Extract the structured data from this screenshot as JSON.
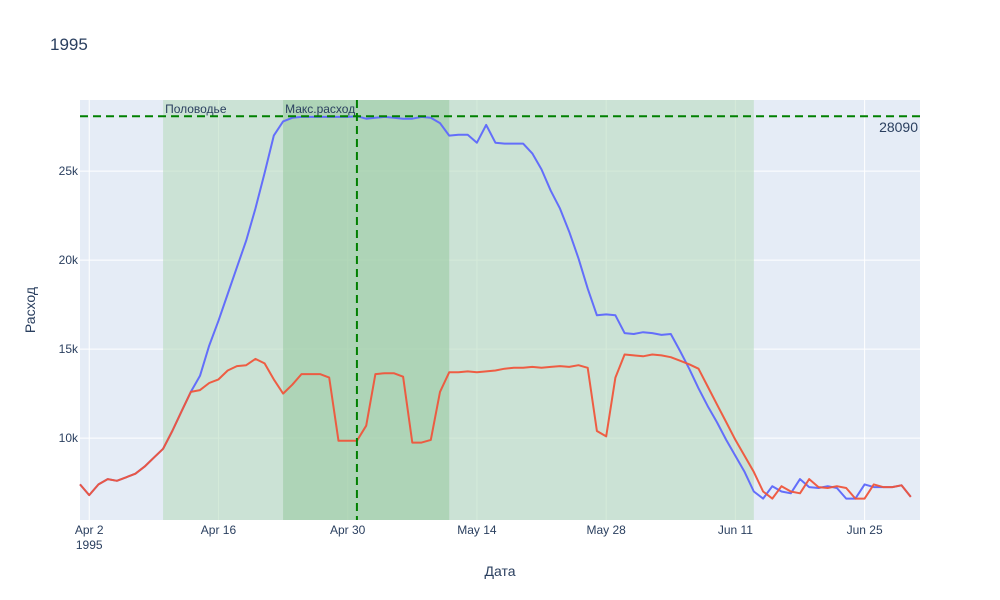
{
  "chart_data": {
    "type": "line",
    "title": "1995",
    "xlabel": "Дата",
    "ylabel": "Расход",
    "xlim": [
      "1995-04-01",
      "1995-07-01"
    ],
    "ylim": [
      5400,
      29000
    ],
    "x_ticks": [
      {
        "date": "1995-04-02",
        "label": "Apr 2",
        "sublabel": "1995"
      },
      {
        "date": "1995-04-16",
        "label": "Apr 16"
      },
      {
        "date": "1995-04-30",
        "label": "Apr 30"
      },
      {
        "date": "1995-05-14",
        "label": "May 14"
      },
      {
        "date": "1995-05-28",
        "label": "May 28"
      },
      {
        "date": "1995-06-11",
        "label": "Jun 11"
      },
      {
        "date": "1995-06-25",
        "label": "Jun 25"
      }
    ],
    "y_ticks": [
      {
        "value": 10000,
        "label": "10k"
      },
      {
        "value": 15000,
        "label": "15k"
      },
      {
        "value": 20000,
        "label": "20k"
      },
      {
        "value": 25000,
        "label": "25k"
      }
    ],
    "grid": true,
    "legend": false,
    "regions": [
      {
        "label": "Половодье",
        "start": "1995-04-10",
        "end": "1995-06-13",
        "color": "#b9dcbf"
      },
      {
        "label": "Макс.расход",
        "start": "1995-04-23",
        "end": "1995-05-11",
        "color": "#9bcba4"
      }
    ],
    "vline": {
      "date": "1995-05-01",
      "color": "#008000"
    },
    "hline": {
      "value": 28090,
      "label": "28090",
      "color": "#008000"
    },
    "colors": {
      "plot_bg": "#e5ecf6",
      "grid": "#ffffff",
      "text": "#2a3f5f"
    },
    "series": [
      {
        "color": "#636efa",
        "points": [
          [
            "1995-04-01",
            7400
          ],
          [
            "1995-04-02",
            6800
          ],
          [
            "1995-04-03",
            7400
          ],
          [
            "1995-04-04",
            7700
          ],
          [
            "1995-04-05",
            7600
          ],
          [
            "1995-04-06",
            7800
          ],
          [
            "1995-04-07",
            8000
          ],
          [
            "1995-04-08",
            8400
          ],
          [
            "1995-04-09",
            8900
          ],
          [
            "1995-04-10",
            9400
          ],
          [
            "1995-04-11",
            10400
          ],
          [
            "1995-04-12",
            11500
          ],
          [
            "1995-04-13",
            12600
          ],
          [
            "1995-04-14",
            13500
          ],
          [
            "1995-04-15",
            15200
          ],
          [
            "1995-04-16",
            16600
          ],
          [
            "1995-04-17",
            18100
          ],
          [
            "1995-04-18",
            19600
          ],
          [
            "1995-04-19",
            21100
          ],
          [
            "1995-04-20",
            22900
          ],
          [
            "1995-04-21",
            24900
          ],
          [
            "1995-04-22",
            27000
          ],
          [
            "1995-04-23",
            27800
          ],
          [
            "1995-04-24",
            28000
          ],
          [
            "1995-04-25",
            28050
          ],
          [
            "1995-04-26",
            28050
          ],
          [
            "1995-04-27",
            28050
          ],
          [
            "1995-04-28",
            28050
          ],
          [
            "1995-04-29",
            28050
          ],
          [
            "1995-04-30",
            28050
          ],
          [
            "1995-05-01",
            28090
          ],
          [
            "1995-05-02",
            27950
          ],
          [
            "1995-05-03",
            28000
          ],
          [
            "1995-05-04",
            28050
          ],
          [
            "1995-05-05",
            28000
          ],
          [
            "1995-05-06",
            27950
          ],
          [
            "1995-05-07",
            27950
          ],
          [
            "1995-05-08",
            28050
          ],
          [
            "1995-05-09",
            28000
          ],
          [
            "1995-05-10",
            27700
          ],
          [
            "1995-05-11",
            27000
          ],
          [
            "1995-05-12",
            27050
          ],
          [
            "1995-05-13",
            27050
          ],
          [
            "1995-05-14",
            26600
          ],
          [
            "1995-05-15",
            27600
          ],
          [
            "1995-05-16",
            26600
          ],
          [
            "1995-05-17",
            26550
          ],
          [
            "1995-05-18",
            26550
          ],
          [
            "1995-05-19",
            26550
          ],
          [
            "1995-05-20",
            26000
          ],
          [
            "1995-05-21",
            25100
          ],
          [
            "1995-05-22",
            23900
          ],
          [
            "1995-05-23",
            22900
          ],
          [
            "1995-05-24",
            21600
          ],
          [
            "1995-05-25",
            20100
          ],
          [
            "1995-05-26",
            18400
          ],
          [
            "1995-05-27",
            16900
          ],
          [
            "1995-05-28",
            16950
          ],
          [
            "1995-05-29",
            16900
          ],
          [
            "1995-05-30",
            15900
          ],
          [
            "1995-05-31",
            15850
          ],
          [
            "1995-06-01",
            15950
          ],
          [
            "1995-06-02",
            15900
          ],
          [
            "1995-06-03",
            15800
          ],
          [
            "1995-06-04",
            15850
          ],
          [
            "1995-06-05",
            14900
          ],
          [
            "1995-06-06",
            13900
          ],
          [
            "1995-06-07",
            12800
          ],
          [
            "1995-06-08",
            11800
          ],
          [
            "1995-06-09",
            10900
          ],
          [
            "1995-06-10",
            9900
          ],
          [
            "1995-06-11",
            9000
          ],
          [
            "1995-06-12",
            8100
          ],
          [
            "1995-06-13",
            7000
          ],
          [
            "1995-06-14",
            6600
          ],
          [
            "1995-06-15",
            7300
          ],
          [
            "1995-06-16",
            7000
          ],
          [
            "1995-06-17",
            6900
          ],
          [
            "1995-06-18",
            7700
          ],
          [
            "1995-06-19",
            7250
          ],
          [
            "1995-06-20",
            7200
          ],
          [
            "1995-06-21",
            7300
          ],
          [
            "1995-06-22",
            7200
          ],
          [
            "1995-06-23",
            6600
          ],
          [
            "1995-06-24",
            6600
          ],
          [
            "1995-06-25",
            7400
          ],
          [
            "1995-06-26",
            7250
          ],
          [
            "1995-06-27",
            7250
          ],
          [
            "1995-06-28",
            7250
          ],
          [
            "1995-06-29",
            7350
          ],
          [
            "1995-06-30",
            6700
          ]
        ]
      },
      {
        "color": "#ef553b",
        "points": [
          [
            "1995-04-01",
            7400
          ],
          [
            "1995-04-02",
            6800
          ],
          [
            "1995-04-03",
            7400
          ],
          [
            "1995-04-04",
            7700
          ],
          [
            "1995-04-05",
            7600
          ],
          [
            "1995-04-06",
            7800
          ],
          [
            "1995-04-07",
            8000
          ],
          [
            "1995-04-08",
            8400
          ],
          [
            "1995-04-09",
            8900
          ],
          [
            "1995-04-10",
            9400
          ],
          [
            "1995-04-11",
            10400
          ],
          [
            "1995-04-12",
            11500
          ],
          [
            "1995-04-13",
            12600
          ],
          [
            "1995-04-14",
            12700
          ],
          [
            "1995-04-15",
            13100
          ],
          [
            "1995-04-16",
            13300
          ],
          [
            "1995-04-17",
            13800
          ],
          [
            "1995-04-18",
            14050
          ],
          [
            "1995-04-19",
            14100
          ],
          [
            "1995-04-20",
            14450
          ],
          [
            "1995-04-21",
            14200
          ],
          [
            "1995-04-22",
            13300
          ],
          [
            "1995-04-23",
            12500
          ],
          [
            "1995-04-24",
            13000
          ],
          [
            "1995-04-25",
            13600
          ],
          [
            "1995-04-26",
            13600
          ],
          [
            "1995-04-27",
            13600
          ],
          [
            "1995-04-28",
            13400
          ],
          [
            "1995-04-29",
            9850
          ],
          [
            "1995-04-30",
            9850
          ],
          [
            "1995-05-01",
            9850
          ],
          [
            "1995-05-02",
            10700
          ],
          [
            "1995-05-03",
            13600
          ],
          [
            "1995-05-04",
            13650
          ],
          [
            "1995-05-05",
            13650
          ],
          [
            "1995-05-06",
            13450
          ],
          [
            "1995-05-07",
            9750
          ],
          [
            "1995-05-08",
            9750
          ],
          [
            "1995-05-09",
            9900
          ],
          [
            "1995-05-10",
            12600
          ],
          [
            "1995-05-11",
            13700
          ],
          [
            "1995-05-12",
            13700
          ],
          [
            "1995-05-13",
            13750
          ],
          [
            "1995-05-14",
            13700
          ],
          [
            "1995-05-15",
            13750
          ],
          [
            "1995-05-16",
            13800
          ],
          [
            "1995-05-17",
            13900
          ],
          [
            "1995-05-18",
            13950
          ],
          [
            "1995-05-19",
            13950
          ],
          [
            "1995-05-20",
            14000
          ],
          [
            "1995-05-21",
            13950
          ],
          [
            "1995-05-22",
            14000
          ],
          [
            "1995-05-23",
            14050
          ],
          [
            "1995-05-24",
            14000
          ],
          [
            "1995-05-25",
            14100
          ],
          [
            "1995-05-26",
            13950
          ],
          [
            "1995-05-27",
            10400
          ],
          [
            "1995-05-28",
            10100
          ],
          [
            "1995-05-29",
            13400
          ],
          [
            "1995-05-30",
            14700
          ],
          [
            "1995-05-31",
            14650
          ],
          [
            "1995-06-01",
            14600
          ],
          [
            "1995-06-02",
            14700
          ],
          [
            "1995-06-03",
            14650
          ],
          [
            "1995-06-04",
            14550
          ],
          [
            "1995-06-05",
            14350
          ],
          [
            "1995-06-06",
            14150
          ],
          [
            "1995-06-07",
            13900
          ],
          [
            "1995-06-08",
            12900
          ],
          [
            "1995-06-09",
            11900
          ],
          [
            "1995-06-10",
            10900
          ],
          [
            "1995-06-11",
            9900
          ],
          [
            "1995-06-12",
            9000
          ],
          [
            "1995-06-13",
            8100
          ],
          [
            "1995-06-14",
            7000
          ],
          [
            "1995-06-15",
            6600
          ],
          [
            "1995-06-16",
            7300
          ],
          [
            "1995-06-17",
            7000
          ],
          [
            "1995-06-18",
            6900
          ],
          [
            "1995-06-19",
            7700
          ],
          [
            "1995-06-20",
            7250
          ],
          [
            "1995-06-21",
            7200
          ],
          [
            "1995-06-22",
            7300
          ],
          [
            "1995-06-23",
            7200
          ],
          [
            "1995-06-24",
            6600
          ],
          [
            "1995-06-25",
            6600
          ],
          [
            "1995-06-26",
            7400
          ],
          [
            "1995-06-27",
            7250
          ],
          [
            "1995-06-28",
            7250
          ],
          [
            "1995-06-29",
            7350
          ],
          [
            "1995-06-30",
            6700
          ]
        ]
      }
    ]
  }
}
